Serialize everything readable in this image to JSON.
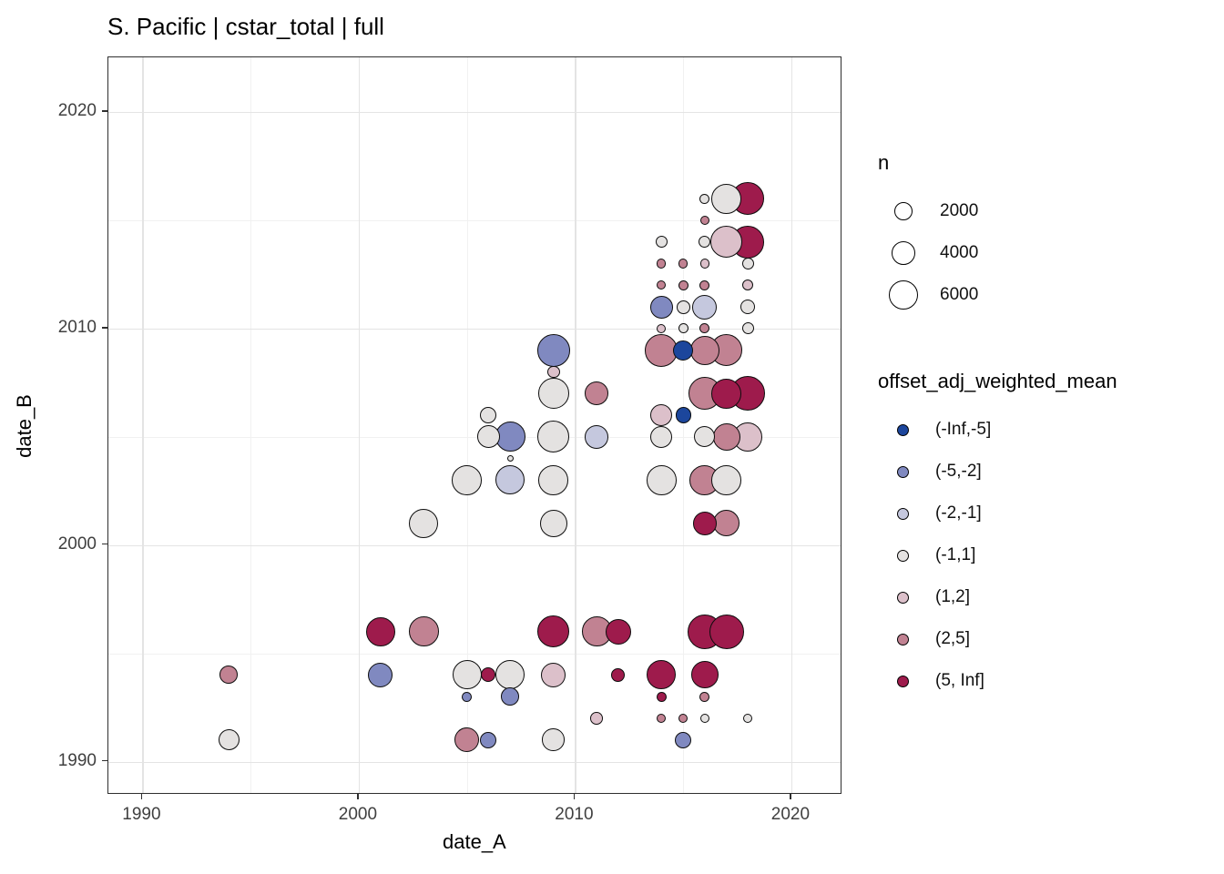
{
  "title": "S. Pacific | cstar_total | full",
  "chart_data": {
    "type": "scatter",
    "title": "S. Pacific | cstar_total | full",
    "xlabel": "date_A",
    "ylabel": "date_B",
    "x_ticks": [
      1990,
      2000,
      2010,
      2020
    ],
    "y_ticks": [
      1990,
      2000,
      2010,
      2020
    ],
    "x_minor": [
      1995,
      2005,
      2015
    ],
    "y_minor": [
      1995,
      2005,
      2015
    ],
    "xlim": [
      1988.4,
      2022.6
    ],
    "ylim": [
      1988.6,
      2022.5
    ],
    "grid": "major+minor",
    "legend_position": "right",
    "size_legend": {
      "title": "n",
      "values": [
        "2000",
        "4000",
        "6000"
      ]
    },
    "color_legend": {
      "title": "offset_adj_weighted_mean",
      "bins": [
        {
          "label": "(-Inf,-5]",
          "color": "#1c469c"
        },
        {
          "label": "(-5,-2]",
          "color": "#8089c0"
        },
        {
          "label": "(-2,-1]",
          "color": "#c5c8de"
        },
        {
          "label": "(-1,1]",
          "color": "#e4e2e1"
        },
        {
          "label": "(1,2]",
          "color": "#dcc0ca"
        },
        {
          "label": "(2,5]",
          "color": "#c18292"
        },
        {
          "label": "(5, Inf]",
          "color": "#9e1b4c"
        }
      ]
    },
    "points": [
      {
        "a": 2009,
        "b": 2009,
        "n": 7500,
        "bin": "(-5,-2]"
      },
      {
        "a": 2009,
        "b": 2008,
        "n": 1100,
        "bin": "(1,2]"
      },
      {
        "a": 2009,
        "b": 2007,
        "n": 6700,
        "bin": "(-1,1]"
      },
      {
        "a": 2011,
        "b": 2007,
        "n": 3900,
        "bin": "(2,5]"
      },
      {
        "a": 2006,
        "b": 2006,
        "n": 1900,
        "bin": "(-1,1]"
      },
      {
        "a": 2006,
        "b": 2005,
        "n": 3600,
        "bin": "(-1,1]"
      },
      {
        "a": 2007,
        "b": 2005,
        "n": 6300,
        "bin": "(-5,-2]"
      },
      {
        "a": 2009,
        "b": 2005,
        "n": 7100,
        "bin": "(-1,1]"
      },
      {
        "a": 2011,
        "b": 2005,
        "n": 3900,
        "bin": "(-2,-1]"
      },
      {
        "a": 2007,
        "b": 2004,
        "n": 300,
        "bin": "(-1,1]"
      },
      {
        "a": 2005,
        "b": 2003,
        "n": 6300,
        "bin": "(-1,1]"
      },
      {
        "a": 2007,
        "b": 2003,
        "n": 6000,
        "bin": "(-2,-1]"
      },
      {
        "a": 2009,
        "b": 2003,
        "n": 6300,
        "bin": "(-1,1]"
      },
      {
        "a": 2009,
        "b": 2001,
        "n": 5200,
        "bin": "(-1,1]"
      },
      {
        "a": 2003,
        "b": 2001,
        "n": 6000,
        "bin": "(-1,1]"
      },
      {
        "a": 2016,
        "b": 2016,
        "n": 700,
        "bin": "(-1,1]"
      },
      {
        "a": 2017,
        "b": 2016,
        "n": 6300,
        "bin": "(-1,1]"
      },
      {
        "a": 2018,
        "b": 2016,
        "n": 7500,
        "bin": "(5, Inf]"
      },
      {
        "a": 2016,
        "b": 2015,
        "n": 600,
        "bin": "(2,5]"
      },
      {
        "a": 2014,
        "b": 2014,
        "n": 1000,
        "bin": "(-1,1]"
      },
      {
        "a": 2016,
        "b": 2014,
        "n": 1000,
        "bin": "(-1,1]"
      },
      {
        "a": 2017,
        "b": 2014,
        "n": 7100,
        "bin": "(1,2]"
      },
      {
        "a": 2018,
        "b": 2014,
        "n": 7500,
        "bin": "(5, Inf]"
      },
      {
        "a": 2014,
        "b": 2013,
        "n": 600,
        "bin": "(2,5]"
      },
      {
        "a": 2015,
        "b": 2013,
        "n": 600,
        "bin": "(2,5]"
      },
      {
        "a": 2016,
        "b": 2013,
        "n": 600,
        "bin": "(1,2]"
      },
      {
        "a": 2018,
        "b": 2013,
        "n": 1000,
        "bin": "(-1,1]"
      },
      {
        "a": 2014,
        "b": 2012,
        "n": 600,
        "bin": "(2,5]"
      },
      {
        "a": 2015,
        "b": 2012,
        "n": 700,
        "bin": "(2,5]"
      },
      {
        "a": 2016,
        "b": 2012,
        "n": 700,
        "bin": "(2,5]"
      },
      {
        "a": 2018,
        "b": 2012,
        "n": 850,
        "bin": "(1,2]"
      },
      {
        "a": 2014,
        "b": 2011,
        "n": 3600,
        "bin": "(-5,-2]"
      },
      {
        "a": 2015,
        "b": 2011,
        "n": 1300,
        "bin": "(-1,1]"
      },
      {
        "a": 2016,
        "b": 2011,
        "n": 4250,
        "bin": "(-2,-1]"
      },
      {
        "a": 2018,
        "b": 2011,
        "n": 1500,
        "bin": "(-1,1]"
      },
      {
        "a": 2014,
        "b": 2010,
        "n": 600,
        "bin": "(1,2]"
      },
      {
        "a": 2015,
        "b": 2010,
        "n": 700,
        "bin": "(-1,1]"
      },
      {
        "a": 2016,
        "b": 2010,
        "n": 700,
        "bin": "(2,5]"
      },
      {
        "a": 2018,
        "b": 2010,
        "n": 1000,
        "bin": "(-1,1]"
      },
      {
        "a": 2014,
        "b": 2009,
        "n": 7500,
        "bin": "(2,5]"
      },
      {
        "a": 2015,
        "b": 2009,
        "n": 2800,
        "bin": "(-Inf,-5]"
      },
      {
        "a": 2016,
        "b": 2009,
        "n": 6000,
        "bin": "(2,5]"
      },
      {
        "a": 2017,
        "b": 2009,
        "n": 7100,
        "bin": "(2,5]"
      },
      {
        "a": 2016,
        "b": 2007,
        "n": 7500,
        "bin": "(2,5]"
      },
      {
        "a": 2017,
        "b": 2007,
        "n": 6300,
        "bin": "(5, Inf]"
      },
      {
        "a": 2018,
        "b": 2007,
        "n": 8400,
        "bin": "(5, Inf]"
      },
      {
        "a": 2014,
        "b": 2006,
        "n": 3350,
        "bin": "(1,2]"
      },
      {
        "a": 2015,
        "b": 2006,
        "n": 1700,
        "bin": "(-Inf,-5]"
      },
      {
        "a": 2014,
        "b": 2005,
        "n": 3350,
        "bin": "(-1,1]"
      },
      {
        "a": 2016,
        "b": 2005,
        "n": 3100,
        "bin": "(-1,1]"
      },
      {
        "a": 2017,
        "b": 2005,
        "n": 5200,
        "bin": "(2,5]"
      },
      {
        "a": 2018,
        "b": 2005,
        "n": 6000,
        "bin": "(1,2]"
      },
      {
        "a": 2014,
        "b": 2003,
        "n": 6300,
        "bin": "(-1,1]"
      },
      {
        "a": 2016,
        "b": 2003,
        "n": 6300,
        "bin": "(2,5]"
      },
      {
        "a": 2017,
        "b": 2003,
        "n": 6300,
        "bin": "(-1,1]"
      },
      {
        "a": 2016,
        "b": 2001,
        "n": 3900,
        "bin": "(5, Inf]"
      },
      {
        "a": 2017,
        "b": 2001,
        "n": 4900,
        "bin": "(2,5]"
      },
      {
        "a": 2001,
        "b": 1996,
        "n": 6000,
        "bin": "(5, Inf]"
      },
      {
        "a": 2003,
        "b": 1996,
        "n": 6300,
        "bin": "(2,5]"
      },
      {
        "a": 2009,
        "b": 1996,
        "n": 7100,
        "bin": "(5, Inf]"
      },
      {
        "a": 2011,
        "b": 1996,
        "n": 6300,
        "bin": "(2,5]"
      },
      {
        "a": 2012,
        "b": 1996,
        "n": 4550,
        "bin": "(5, Inf]"
      },
      {
        "a": 2016,
        "b": 1996,
        "n": 8400,
        "bin": "(5, Inf]"
      },
      {
        "a": 2017,
        "b": 1996,
        "n": 8400,
        "bin": "(5, Inf]"
      },
      {
        "a": 1994,
        "b": 1994,
        "n": 2300,
        "bin": "(2,5]"
      },
      {
        "a": 2001,
        "b": 1994,
        "n": 4250,
        "bin": "(-5,-2]"
      },
      {
        "a": 2005,
        "b": 1994,
        "n": 6000,
        "bin": "(-1,1]"
      },
      {
        "a": 2006,
        "b": 1994,
        "n": 1500,
        "bin": "(5, Inf]"
      },
      {
        "a": 2007,
        "b": 1994,
        "n": 6000,
        "bin": "(-1,1]"
      },
      {
        "a": 2009,
        "b": 1994,
        "n": 4250,
        "bin": "(1,2]"
      },
      {
        "a": 2012,
        "b": 1994,
        "n": 1300,
        "bin": "(5, Inf]"
      },
      {
        "a": 2014,
        "b": 1994,
        "n": 6000,
        "bin": "(5, Inf]"
      },
      {
        "a": 2016,
        "b": 1994,
        "n": 5200,
        "bin": "(5, Inf]"
      },
      {
        "a": 2005,
        "b": 1993,
        "n": 700,
        "bin": "(-5,-2]"
      },
      {
        "a": 2007,
        "b": 1993,
        "n": 2300,
        "bin": "(-5,-2]"
      },
      {
        "a": 2014,
        "b": 1993,
        "n": 700,
        "bin": "(5, Inf]"
      },
      {
        "a": 2016,
        "b": 1993,
        "n": 700,
        "bin": "(2,5]"
      },
      {
        "a": 2011,
        "b": 1992,
        "n": 1100,
        "bin": "(1,2]"
      },
      {
        "a": 2014,
        "b": 1992,
        "n": 600,
        "bin": "(2,5]"
      },
      {
        "a": 2015,
        "b": 1992,
        "n": 600,
        "bin": "(2,5]"
      },
      {
        "a": 2016,
        "b": 1992,
        "n": 600,
        "bin": "(-1,1]"
      },
      {
        "a": 2018,
        "b": 1992,
        "n": 600,
        "bin": "(-1,1]"
      },
      {
        "a": 1994,
        "b": 1991,
        "n": 3100,
        "bin": "(-1,1]"
      },
      {
        "a": 2005,
        "b": 1991,
        "n": 4250,
        "bin": "(2,5]"
      },
      {
        "a": 2006,
        "b": 1991,
        "n": 1900,
        "bin": "(-5,-2]"
      },
      {
        "a": 2009,
        "b": 1991,
        "n": 3500,
        "bin": "(-1,1]"
      },
      {
        "a": 2015,
        "b": 1991,
        "n": 1900,
        "bin": "(-5,-2]"
      }
    ]
  }
}
